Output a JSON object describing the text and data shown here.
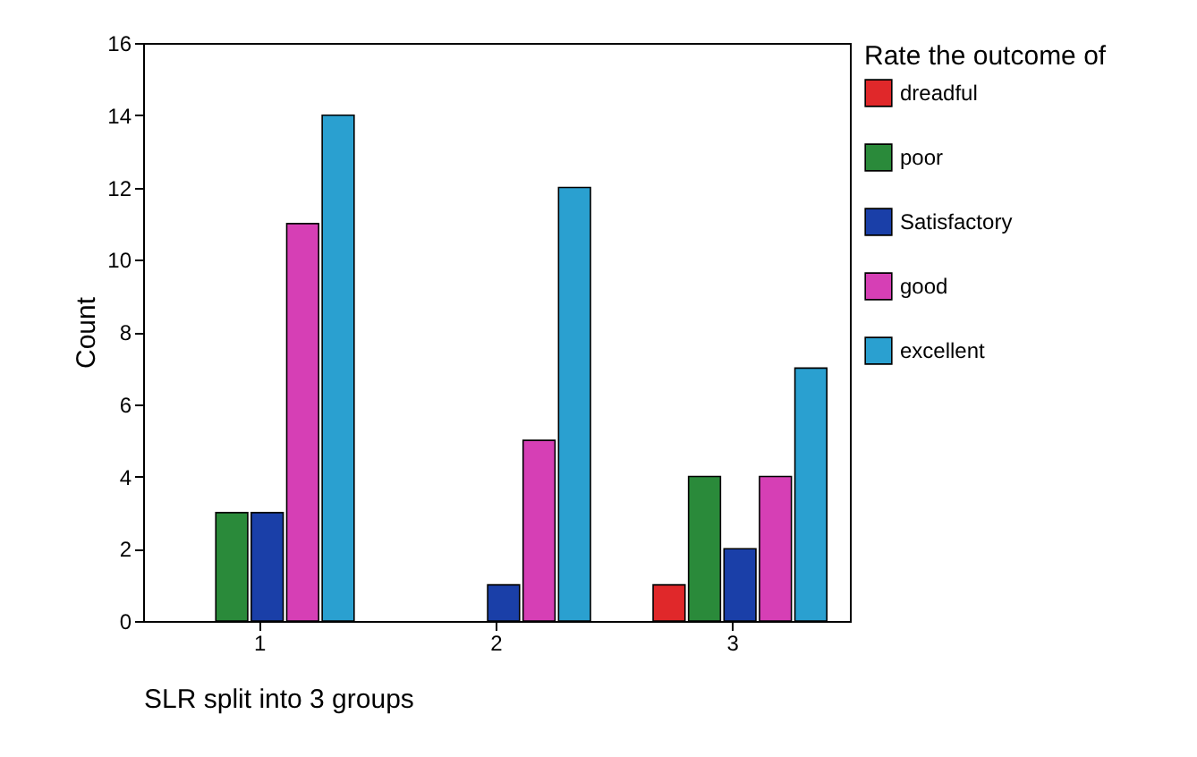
{
  "chart_data": {
    "type": "bar",
    "xlabel": "SLR split into 3 groups",
    "ylabel": "Count",
    "legend_title": "Rate the outcome of",
    "categories": [
      "1",
      "2",
      "3"
    ],
    "series": [
      {
        "name": "dreadful",
        "color": "#e0282a",
        "values": [
          null,
          null,
          1
        ]
      },
      {
        "name": "poor",
        "color": "#2a8a3a",
        "values": [
          3,
          null,
          4
        ]
      },
      {
        "name": "Satisfactory",
        "color": "#1a3fa8",
        "values": [
          3,
          1,
          2
        ]
      },
      {
        "name": "good",
        "color": "#d63fb5",
        "values": [
          11,
          5,
          4
        ]
      },
      {
        "name": "excellent",
        "color": "#2aa0d0",
        "values": [
          14,
          12,
          7
        ]
      }
    ],
    "ylim": [
      0,
      16
    ],
    "yticks": [
      0,
      2,
      4,
      6,
      8,
      10,
      12,
      14,
      16
    ],
    "grid": false,
    "legend": "right"
  }
}
